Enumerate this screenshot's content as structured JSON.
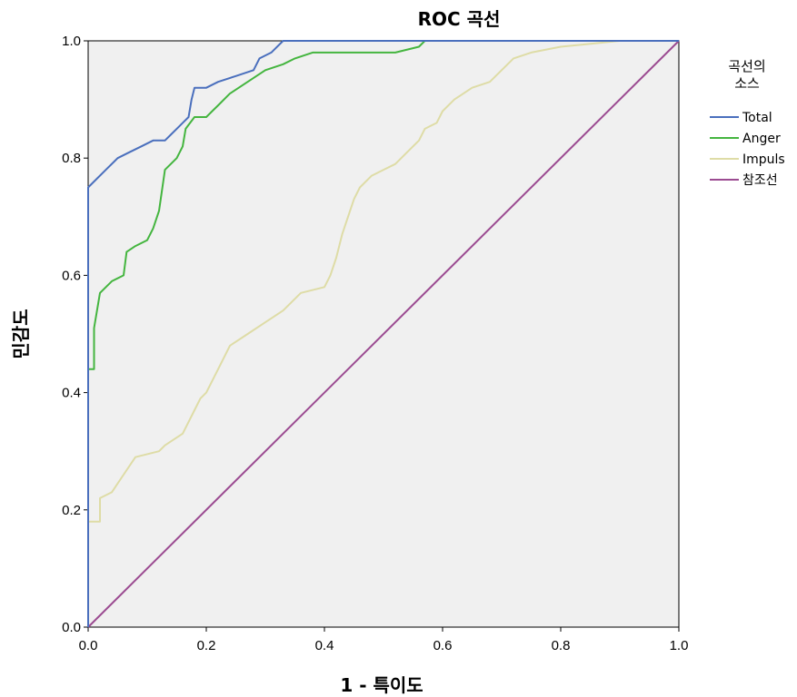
{
  "chart_data": {
    "type": "line",
    "title": "ROC 곡선",
    "xlabel": "1 - 특이도",
    "ylabel": "민감도",
    "xlim": [
      0.0,
      1.0
    ],
    "ylim": [
      0.0,
      1.0
    ],
    "x_ticks": [
      "0.0",
      "0.2",
      "0.4",
      "0.6",
      "0.8",
      "1.0"
    ],
    "y_ticks": [
      "0.0",
      "0.2",
      "0.4",
      "0.6",
      "0.8",
      "1.0"
    ],
    "background": "#f0f0f0",
    "grid": false,
    "legend": {
      "title_lines": [
        "곡선의",
        "소스"
      ],
      "placement": "right"
    },
    "series": [
      {
        "name": "Total",
        "color": "#4a6fbd",
        "points": [
          [
            0,
            0
          ],
          [
            0,
            0.75
          ],
          [
            0.01,
            0.76
          ],
          [
            0.03,
            0.78
          ],
          [
            0.05,
            0.8
          ],
          [
            0.07,
            0.81
          ],
          [
            0.09,
            0.82
          ],
          [
            0.11,
            0.83
          ],
          [
            0.13,
            0.83
          ],
          [
            0.14,
            0.84
          ],
          [
            0.15,
            0.85
          ],
          [
            0.16,
            0.86
          ],
          [
            0.17,
            0.87
          ],
          [
            0.175,
            0.9
          ],
          [
            0.18,
            0.92
          ],
          [
            0.2,
            0.92
          ],
          [
            0.22,
            0.93
          ],
          [
            0.25,
            0.94
          ],
          [
            0.28,
            0.95
          ],
          [
            0.29,
            0.97
          ],
          [
            0.31,
            0.98
          ],
          [
            0.33,
            1.0
          ],
          [
            1.0,
            1.0
          ]
        ]
      },
      {
        "name": "Anger",
        "color": "#44b53f",
        "points": [
          [
            0,
            0
          ],
          [
            0,
            0.44
          ],
          [
            0.01,
            0.44
          ],
          [
            0.01,
            0.51
          ],
          [
            0.02,
            0.57
          ],
          [
            0.04,
            0.59
          ],
          [
            0.06,
            0.6
          ],
          [
            0.065,
            0.64
          ],
          [
            0.08,
            0.65
          ],
          [
            0.1,
            0.66
          ],
          [
            0.11,
            0.68
          ],
          [
            0.12,
            0.71
          ],
          [
            0.13,
            0.78
          ],
          [
            0.15,
            0.8
          ],
          [
            0.16,
            0.82
          ],
          [
            0.165,
            0.85
          ],
          [
            0.18,
            0.87
          ],
          [
            0.2,
            0.87
          ],
          [
            0.21,
            0.88
          ],
          [
            0.22,
            0.89
          ],
          [
            0.24,
            0.91
          ],
          [
            0.27,
            0.93
          ],
          [
            0.3,
            0.95
          ],
          [
            0.33,
            0.96
          ],
          [
            0.35,
            0.97
          ],
          [
            0.38,
            0.98
          ],
          [
            0.45,
            0.98
          ],
          [
            0.52,
            0.98
          ],
          [
            0.56,
            0.99
          ],
          [
            0.57,
            1.0
          ],
          [
            1.0,
            1.0
          ]
        ]
      },
      {
        "name": "Impuls",
        "color": "#dedca6",
        "points": [
          [
            0,
            0
          ],
          [
            0,
            0.18
          ],
          [
            0.02,
            0.18
          ],
          [
            0.02,
            0.22
          ],
          [
            0.04,
            0.23
          ],
          [
            0.06,
            0.26
          ],
          [
            0.08,
            0.29
          ],
          [
            0.12,
            0.3
          ],
          [
            0.13,
            0.31
          ],
          [
            0.16,
            0.33
          ],
          [
            0.17,
            0.35
          ],
          [
            0.18,
            0.37
          ],
          [
            0.19,
            0.39
          ],
          [
            0.2,
            0.4
          ],
          [
            0.22,
            0.44
          ],
          [
            0.24,
            0.48
          ],
          [
            0.27,
            0.5
          ],
          [
            0.3,
            0.52
          ],
          [
            0.33,
            0.54
          ],
          [
            0.36,
            0.57
          ],
          [
            0.4,
            0.58
          ],
          [
            0.41,
            0.6
          ],
          [
            0.42,
            0.63
          ],
          [
            0.43,
            0.67
          ],
          [
            0.44,
            0.7
          ],
          [
            0.45,
            0.73
          ],
          [
            0.46,
            0.75
          ],
          [
            0.48,
            0.77
          ],
          [
            0.5,
            0.78
          ],
          [
            0.52,
            0.79
          ],
          [
            0.54,
            0.81
          ],
          [
            0.56,
            0.83
          ],
          [
            0.57,
            0.85
          ],
          [
            0.59,
            0.86
          ],
          [
            0.6,
            0.88
          ],
          [
            0.62,
            0.9
          ],
          [
            0.65,
            0.92
          ],
          [
            0.68,
            0.93
          ],
          [
            0.7,
            0.95
          ],
          [
            0.72,
            0.97
          ],
          [
            0.75,
            0.98
          ],
          [
            0.8,
            0.99
          ],
          [
            0.9,
            1.0
          ],
          [
            1.0,
            1.0
          ]
        ]
      },
      {
        "name": "참조선",
        "color": "#9b4b91",
        "points": [
          [
            0,
            0
          ],
          [
            1,
            1
          ]
        ]
      }
    ]
  }
}
